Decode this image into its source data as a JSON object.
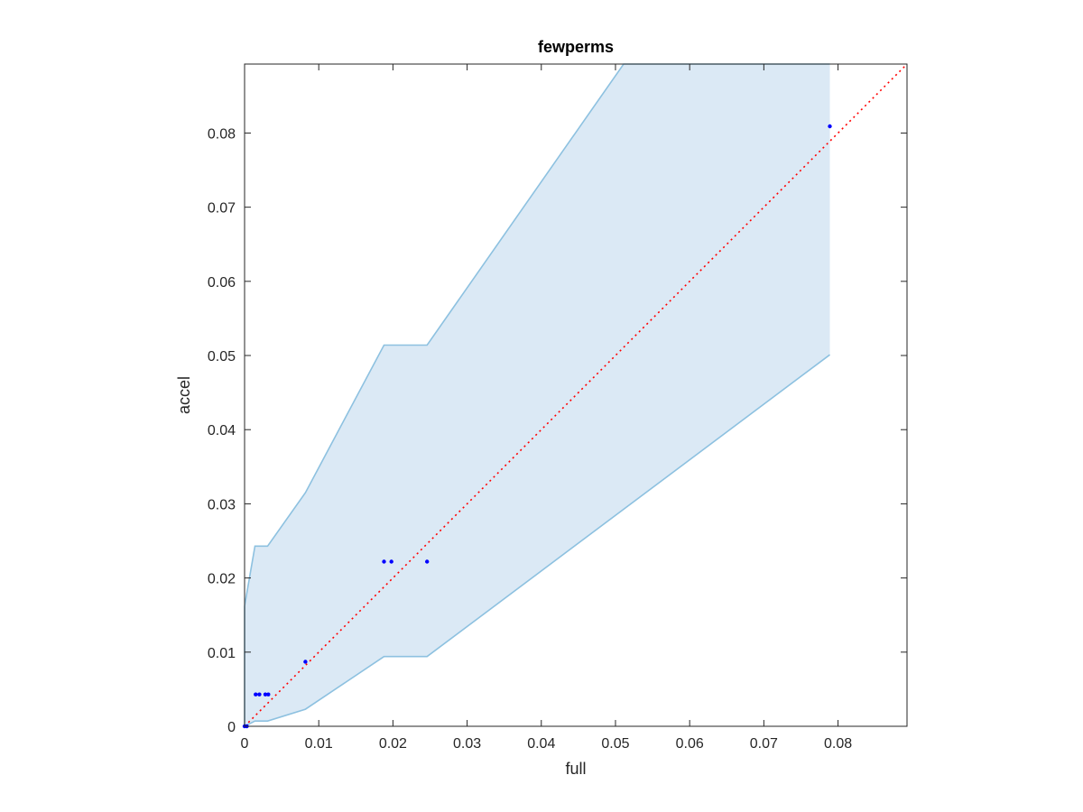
{
  "chart_data": {
    "type": "scatter",
    "title": "fewperms",
    "xlabel": "full",
    "ylabel": "accel",
    "xlim": [
      0,
      0.0893
    ],
    "ylim": [
      0,
      0.0893
    ],
    "grid": false,
    "xticks": [
      "0",
      "0.01",
      "0.02",
      "0.03",
      "0.04",
      "0.05",
      "0.06",
      "0.07",
      "0.08"
    ],
    "yticks": [
      "0",
      "0.01",
      "0.02",
      "0.03",
      "0.04",
      "0.05",
      "0.06",
      "0.07",
      "0.08"
    ],
    "points": [
      {
        "x": 0.0,
        "y": 0.0
      },
      {
        "x": 0.0003,
        "y": 0.0
      },
      {
        "x": 0.0015,
        "y": 0.0043
      },
      {
        "x": 0.002,
        "y": 0.0043
      },
      {
        "x": 0.0028,
        "y": 0.0043
      },
      {
        "x": 0.0032,
        "y": 0.0043
      },
      {
        "x": 0.0082,
        "y": 0.0087
      },
      {
        "x": 0.0188,
        "y": 0.0222
      },
      {
        "x": 0.0198,
        "y": 0.0222
      },
      {
        "x": 0.0246,
        "y": 0.0222
      },
      {
        "x": 0.0789,
        "y": 0.0809
      }
    ],
    "band_upper": [
      {
        "x": 0.0,
        "y": 0.0162
      },
      {
        "x": 0.0014,
        "y": 0.0243
      },
      {
        "x": 0.0031,
        "y": 0.0243
      },
      {
        "x": 0.0082,
        "y": 0.0315
      },
      {
        "x": 0.0188,
        "y": 0.0514
      },
      {
        "x": 0.0246,
        "y": 0.0514
      },
      {
        "x": 0.0511,
        "y": 0.0893
      },
      {
        "x": 0.0789,
        "y": 0.0893
      }
    ],
    "band_lower": [
      {
        "x": 0.0,
        "y": 0.0
      },
      {
        "x": 0.0014,
        "y": 0.0007
      },
      {
        "x": 0.0031,
        "y": 0.0007
      },
      {
        "x": 0.0082,
        "y": 0.0023
      },
      {
        "x": 0.0188,
        "y": 0.0094
      },
      {
        "x": 0.0246,
        "y": 0.0094
      },
      {
        "x": 0.0789,
        "y": 0.0501
      }
    ],
    "reference_line": {
      "x": [
        0,
        0.0893
      ],
      "y": [
        0,
        0.0893
      ]
    },
    "colors": {
      "band_fill": "#dbe9f5",
      "band_edge": "#8dc1e0",
      "points": "#0000ff",
      "reference_line": "#ff0000",
      "axes": "#262626"
    }
  }
}
